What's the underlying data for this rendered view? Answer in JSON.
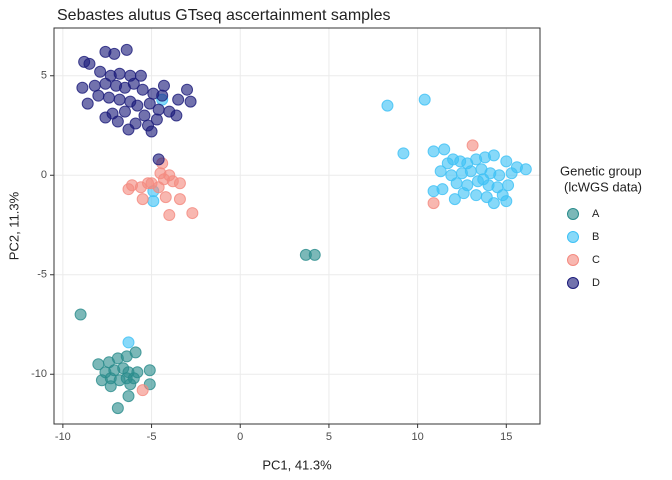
{
  "chart_data": {
    "type": "scatter",
    "title": "Sebastes alutus GTseq ascertainment samples",
    "x_label": "PC1, 41.3%",
    "y_label": "PC2, 11.3%",
    "legend_title": [
      "Genetic group",
      "(lcWGS data)"
    ],
    "xlim": [
      -10.5,
      16.9
    ],
    "ylim": [
      -12.5,
      7.4
    ],
    "xticks": [
      -10,
      -5,
      0,
      5,
      10,
      15
    ],
    "yticks": [
      -10,
      -5,
      0,
      5
    ],
    "grid": true,
    "legend_position": "right",
    "series": [
      {
        "name": "A",
        "color": "#2a8c8c",
        "x": [
          -8.0,
          -7.4,
          -6.9,
          -6.4,
          -5.9,
          -7.6,
          -7.1,
          -6.6,
          -6.3,
          -7.8,
          -7.3,
          -6.8,
          -6.4,
          -6.0,
          -5.1,
          -6.2,
          -5.8,
          -5.1,
          -6.3,
          -6.9,
          -9.0,
          3.7,
          4.2,
          -7.3
        ],
        "y": [
          -9.5,
          -9.4,
          -9.2,
          -9.1,
          -8.9,
          -9.9,
          -9.8,
          -9.7,
          -9.9,
          -10.3,
          -10.2,
          -10.3,
          -10.2,
          -10.2,
          -9.8,
          -10.5,
          -9.9,
          -10.5,
          -11.1,
          -11.7,
          -7.0,
          -4.0,
          -4.0,
          -10.6
        ]
      },
      {
        "name": "B",
        "color": "#3ec1f5",
        "x": [
          8.3,
          10.4,
          9.2,
          10.9,
          11.5,
          12.0,
          12.4,
          12.8,
          13.3,
          13.8,
          14.3,
          15.0,
          15.6,
          11.3,
          11.9,
          12.5,
          13.0,
          13.6,
          14.1,
          14.6,
          15.3,
          12.2,
          12.8,
          13.4,
          14.0,
          14.5,
          15.1,
          11.4,
          10.9,
          12.6,
          13.3,
          13.9,
          14.8,
          12.1,
          14.3,
          15.0,
          11.7,
          16.1,
          -4.4,
          -4.9,
          -4.9,
          -6.3,
          13.7
        ],
        "y": [
          3.5,
          3.8,
          1.1,
          1.2,
          1.3,
          0.8,
          0.7,
          0.6,
          0.8,
          0.9,
          1.0,
          0.7,
          0.4,
          0.2,
          0.0,
          0.1,
          0.2,
          0.3,
          0.1,
          0.0,
          0.1,
          -0.4,
          -0.5,
          -0.3,
          -0.5,
          -0.6,
          -0.5,
          -0.7,
          -0.8,
          -0.9,
          -1.0,
          -1.1,
          -1.0,
          -1.2,
          -1.4,
          -1.3,
          0.6,
          0.3,
          3.8,
          -0.8,
          -1.3,
          -8.4,
          -0.2
        ]
      },
      {
        "name": "C",
        "color": "#f48a80",
        "x": [
          -6.1,
          -5.6,
          -6.3,
          -5.0,
          -4.3,
          -3.8,
          -3.4,
          -4.5,
          -4.0,
          -4.6,
          -5.5,
          -4.2,
          -3.4,
          -4.0,
          -2.7,
          -4.4,
          13.1,
          10.9,
          -5.5,
          -5.2
        ],
        "y": [
          -0.5,
          -0.6,
          -0.7,
          -0.4,
          -0.2,
          -0.3,
          -0.4,
          0.1,
          0.0,
          -0.6,
          -1.2,
          -1.1,
          -1.2,
          -2.0,
          -1.9,
          0.6,
          1.5,
          -1.4,
          -10.8,
          -0.4
        ]
      },
      {
        "name": "D",
        "color": "#1b1b7a",
        "x": [
          -8.8,
          -8.5,
          -7.6,
          -7.1,
          -6.4,
          -7.9,
          -7.3,
          -6.8,
          -6.2,
          -5.6,
          -8.9,
          -8.2,
          -7.6,
          -7.0,
          -6.5,
          -6.0,
          -5.5,
          -4.9,
          -4.3,
          -3.5,
          -2.8,
          -8.6,
          -7.4,
          -6.8,
          -6.2,
          -5.8,
          -5.1,
          -4.6,
          -4.0,
          -3.6,
          -7.2,
          -6.5,
          -5.4,
          -7.6,
          -6.9,
          -5.9,
          -5.2,
          -4.7,
          -6.3,
          -4.6,
          -8.0,
          -4.4,
          -3.0,
          -5.0
        ],
        "y": [
          5.7,
          5.6,
          6.2,
          6.1,
          6.3,
          5.2,
          5.0,
          5.1,
          5.0,
          5.0,
          4.4,
          4.5,
          4.6,
          4.5,
          4.4,
          4.6,
          4.3,
          4.1,
          4.5,
          3.8,
          3.7,
          3.6,
          3.9,
          3.8,
          3.7,
          3.5,
          3.6,
          3.3,
          3.2,
          3.0,
          3.1,
          3.2,
          3.0,
          2.9,
          2.7,
          2.6,
          2.5,
          2.8,
          2.3,
          0.8,
          4.0,
          4.0,
          4.3,
          2.2
        ]
      }
    ]
  }
}
